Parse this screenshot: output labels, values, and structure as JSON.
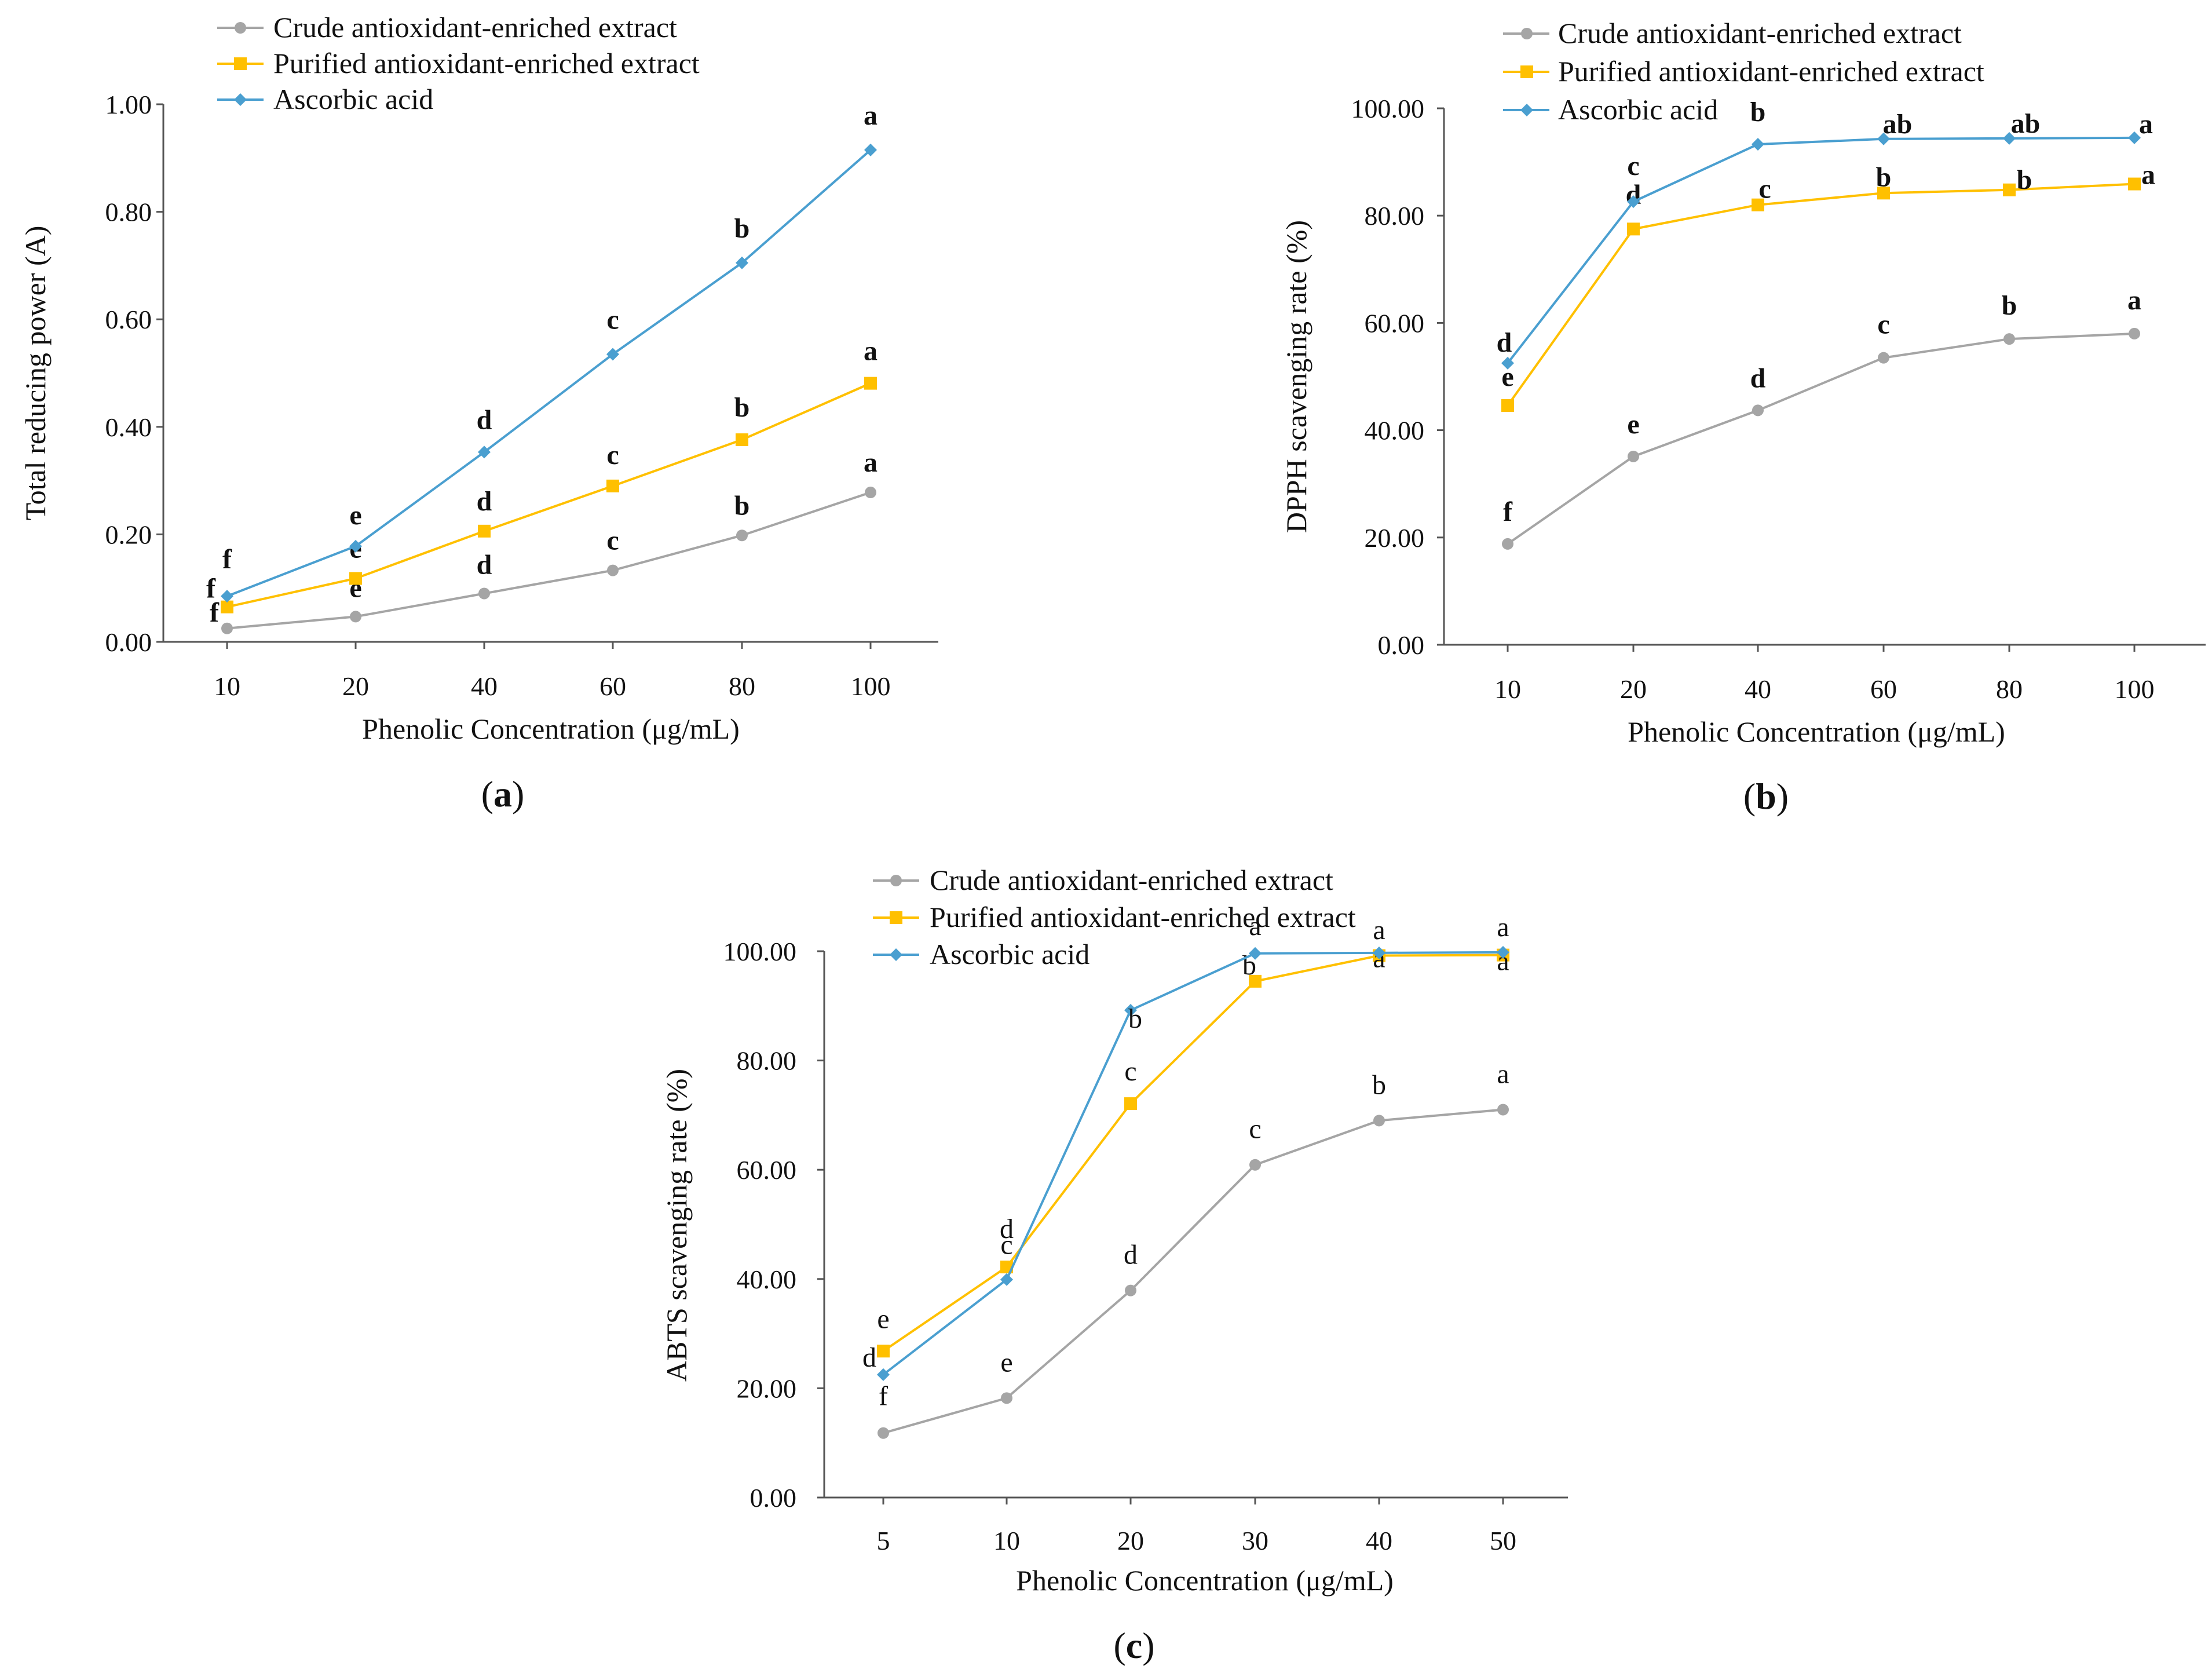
{
  "colors": {
    "crude": "#A5A5A5",
    "purified": "#FFC000",
    "ascorbic": "#4A9FD0",
    "axis": "#555555"
  },
  "chart_data": [
    {
      "id": "a",
      "type": "line",
      "panel_label": "a",
      "xlabel": "Phenolic Concentration (μg/mL)",
      "ylabel": "Total reducing power (A)",
      "categories": [
        "10",
        "20",
        "40",
        "60",
        "80",
        "100"
      ],
      "ylim": [
        0,
        1
      ],
      "yticks": [
        "0.00",
        "0.20",
        "0.40",
        "0.60",
        "0.80",
        "1.00"
      ],
      "legend": [
        "Crude antioxidant-enriched extract",
        "Purified antioxidant-enriched extract",
        "Ascorbic acid"
      ],
      "series": [
        {
          "name": "Crude antioxidant-enriched extract",
          "key": "crude",
          "marker": "circle",
          "values": [
            0.025,
            0.047,
            0.09,
            0.133,
            0.198,
            0.278
          ],
          "labels": [
            "f",
            "e",
            "d",
            "c",
            "b",
            "a"
          ]
        },
        {
          "name": "Purified antioxidant-enriched extract",
          "key": "purified",
          "marker": "square",
          "values": [
            0.065,
            0.118,
            0.206,
            0.29,
            0.376,
            0.481
          ],
          "labels": [
            "f",
            "e",
            "d",
            "c",
            "b",
            "a"
          ]
        },
        {
          "name": "Ascorbic acid",
          "key": "ascorbic",
          "marker": "diamond",
          "values": [
            0.085,
            0.178,
            0.353,
            0.535,
            0.705,
            0.915
          ],
          "labels": [
            "f",
            "e",
            "d",
            "c",
            "b",
            "a"
          ]
        }
      ]
    },
    {
      "id": "b",
      "type": "line",
      "panel_label": "b",
      "xlabel": "Phenolic Concentration (μg/mL)",
      "ylabel": "DPPH scavenging rate (%)",
      "categories": [
        "10",
        "20",
        "40",
        "60",
        "80",
        "100"
      ],
      "ylim": [
        0,
        100
      ],
      "yticks": [
        "0.00",
        "20.00",
        "40.00",
        "60.00",
        "80.00",
        "100.00"
      ],
      "legend": [
        "Crude antioxidant-enriched extract",
        "Purified antioxidant-enriched extract",
        "Ascorbic acid"
      ],
      "series": [
        {
          "name": "Crude antioxidant-enriched extract",
          "key": "crude",
          "marker": "circle",
          "values": [
            18.8,
            35.1,
            43.7,
            53.5,
            57.0,
            58.0
          ],
          "labels": [
            "f",
            "e",
            "d",
            "c",
            "b",
            "a"
          ]
        },
        {
          "name": "Purified antioxidant-enriched extract",
          "key": "purified",
          "marker": "square",
          "values": [
            44.6,
            77.5,
            82.0,
            84.2,
            84.8,
            85.9
          ],
          "labels": [
            "e",
            "d",
            "c",
            "b",
            "b",
            "a"
          ]
        },
        {
          "name": "Ascorbic acid",
          "key": "ascorbic",
          "marker": "diamond",
          "values": [
            52.5,
            82.6,
            93.3,
            94.3,
            94.4,
            94.5
          ],
          "labels": [
            "d",
            "c",
            "b",
            "ab",
            "ab",
            "a"
          ]
        }
      ]
    },
    {
      "id": "c",
      "type": "line",
      "panel_label": "c",
      "xlabel": "Phenolic Concentration (μg/mL)",
      "ylabel": "ABTS scavenging rate (%)",
      "categories": [
        "5",
        "10",
        "20",
        "30",
        "40",
        "50"
      ],
      "ylim": [
        0,
        100
      ],
      "yticks": [
        "0.00",
        "20.00",
        "40.00",
        "60.00",
        "80.00",
        "100.00"
      ],
      "legend": [
        "Crude antioxidant-enriched extract",
        "Purified antioxidant-enriched extract",
        "Ascorbic acid"
      ],
      "series": [
        {
          "name": "Crude antioxidant-enriched extract",
          "key": "crude",
          "marker": "circle",
          "values": [
            11.8,
            18.2,
            37.9,
            60.9,
            69.0,
            71.0
          ],
          "labels": [
            "f",
            "e",
            "d",
            "c",
            "b",
            "a"
          ]
        },
        {
          "name": "Purified antioxidant-enriched extract",
          "key": "purified",
          "marker": "square",
          "values": [
            26.8,
            42.2,
            72.1,
            94.5,
            99.2,
            99.3
          ],
          "labels": [
            "e",
            "d",
            "c",
            "b",
            "a",
            "a"
          ]
        },
        {
          "name": "Ascorbic acid",
          "key": "ascorbic",
          "marker": "diamond",
          "values": [
            22.5,
            39.9,
            89.2,
            99.6,
            99.7,
            99.8
          ],
          "labels": [
            "d",
            "c",
            "b",
            "a",
            "a",
            "a"
          ]
        }
      ]
    }
  ]
}
